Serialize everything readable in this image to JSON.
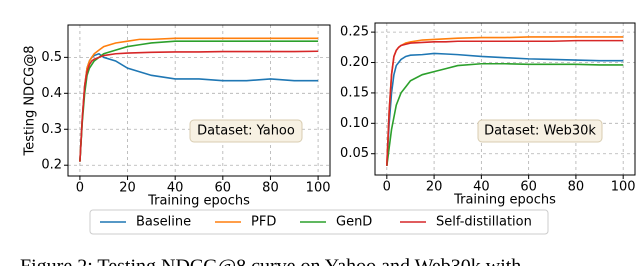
{
  "chart_data": [
    {
      "type": "line",
      "ylabel": "Testing NDCG@8",
      "xlabel": "Training epochs",
      "annotation": "Dataset: Yahoo",
      "x": [
        0,
        1,
        2,
        3,
        4,
        5,
        6,
        8,
        10,
        15,
        20,
        25,
        30,
        40,
        50,
        60,
        70,
        80,
        90,
        100
      ],
      "series": [
        {
          "name": "Baseline",
          "color": "#1f77b4",
          "values": [
            0.21,
            0.33,
            0.42,
            0.47,
            0.49,
            0.5,
            0.505,
            0.51,
            0.5,
            0.49,
            0.47,
            0.46,
            0.45,
            0.44,
            0.44,
            0.435,
            0.435,
            0.44,
            0.435,
            0.435
          ]
        },
        {
          "name": "PFD",
          "color": "#ff7f0e",
          "values": [
            0.21,
            0.33,
            0.42,
            0.47,
            0.49,
            0.5,
            0.51,
            0.52,
            0.53,
            0.54,
            0.545,
            0.55,
            0.55,
            0.553,
            0.553,
            0.553,
            0.553,
            0.553,
            0.553,
            0.553
          ]
        },
        {
          "name": "GenD",
          "color": "#2ca02c",
          "values": [
            0.21,
            0.32,
            0.4,
            0.45,
            0.47,
            0.48,
            0.49,
            0.5,
            0.51,
            0.52,
            0.53,
            0.535,
            0.54,
            0.545,
            0.545,
            0.545,
            0.545,
            0.545,
            0.545,
            0.545
          ]
        },
        {
          "name": "Self-distillation",
          "color": "#d62728",
          "values": [
            0.21,
            0.33,
            0.42,
            0.46,
            0.48,
            0.49,
            0.495,
            0.5,
            0.505,
            0.51,
            0.512,
            0.513,
            0.514,
            0.515,
            0.515,
            0.516,
            0.516,
            0.516,
            0.516,
            0.517
          ]
        }
      ],
      "xlim": [
        -5,
        105
      ],
      "ylim": [
        0.17,
        0.59
      ],
      "xticks": [
        0,
        20,
        40,
        60,
        80,
        100
      ],
      "yticks": [
        0.2,
        0.3,
        0.4,
        0.5
      ],
      "grid": true
    },
    {
      "type": "line",
      "xlabel": "Training epochs",
      "annotation": "Dataset: Web30k",
      "x": [
        0,
        1,
        2,
        3,
        4,
        5,
        6,
        8,
        10,
        15,
        20,
        25,
        30,
        40,
        50,
        60,
        70,
        80,
        90,
        100
      ],
      "series": [
        {
          "name": "Baseline",
          "color": "#1f77b4",
          "values": [
            0.03,
            0.1,
            0.15,
            0.18,
            0.195,
            0.2,
            0.205,
            0.21,
            0.212,
            0.213,
            0.215,
            0.214,
            0.213,
            0.21,
            0.208,
            0.206,
            0.205,
            0.204,
            0.203,
            0.203
          ]
        },
        {
          "name": "PFD",
          "color": "#ff7f0e",
          "values": [
            0.03,
            0.12,
            0.18,
            0.21,
            0.22,
            0.225,
            0.228,
            0.232,
            0.234,
            0.237,
            0.238,
            0.239,
            0.24,
            0.241,
            0.241,
            0.242,
            0.242,
            0.242,
            0.242,
            0.242
          ]
        },
        {
          "name": "GenD",
          "color": "#2ca02c",
          "values": [
            0.03,
            0.06,
            0.09,
            0.11,
            0.13,
            0.14,
            0.15,
            0.16,
            0.17,
            0.18,
            0.185,
            0.19,
            0.195,
            0.198,
            0.198,
            0.197,
            0.197,
            0.197,
            0.196,
            0.196
          ]
        },
        {
          "name": "Self-distillation",
          "color": "#d62728",
          "values": [
            0.03,
            0.12,
            0.18,
            0.21,
            0.22,
            0.225,
            0.228,
            0.23,
            0.232,
            0.233,
            0.234,
            0.234,
            0.235,
            0.235,
            0.235,
            0.235,
            0.235,
            0.236,
            0.236,
            0.236
          ]
        }
      ],
      "xlim": [
        -5,
        105
      ],
      "ylim": [
        0.015,
        0.265
      ],
      "xticks": [
        0,
        20,
        40,
        60,
        80,
        100
      ],
      "yticks": [
        0.05,
        {
          "value": 0.1,
          "label": "0.10"
        },
        0.15,
        {
          "value": 0.2,
          "label": "0.20"
        },
        0.25
      ],
      "grid": true
    }
  ],
  "caption": "Figure 2: Testing NDCG@8 curve on Yahoo and Web30k with"
}
